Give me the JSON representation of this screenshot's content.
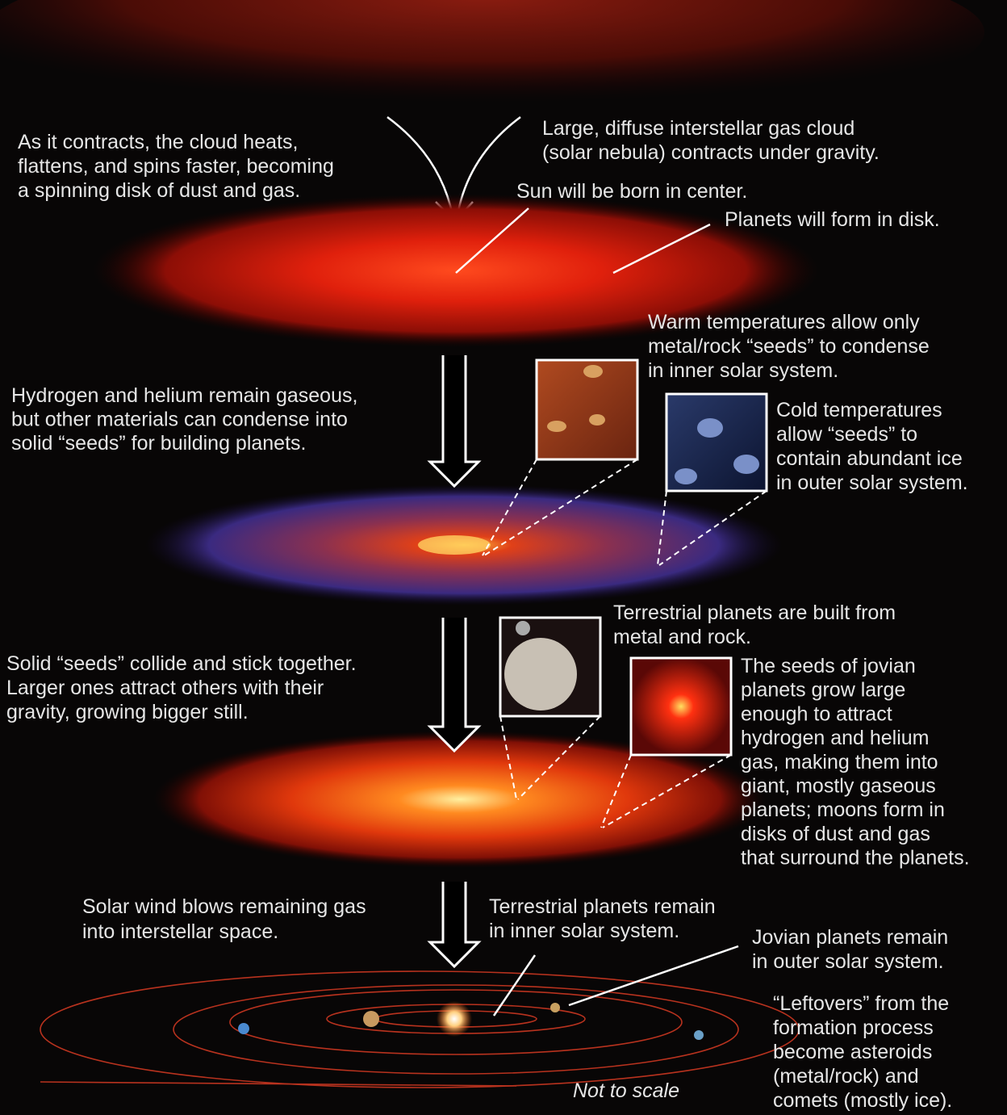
{
  "labels": [
    {
      "lines": [
        "As it contracts, the cloud heats,",
        "flattens, and spins faster, becoming",
        "a spinning disk of dust and gas."
      ]
    },
    {
      "lines": [
        "Large, diffuse interstellar gas cloud",
        "(solar nebula) contracts under gravity."
      ]
    },
    {
      "lines": [
        "Sun will be born in center."
      ]
    },
    {
      "lines": [
        "Planets will form in disk."
      ]
    },
    {
      "lines": [
        "Warm temperatures allow only",
        "metal/rock “seeds” to condense",
        "in inner solar system."
      ]
    },
    {
      "lines": [
        "Hydrogen and helium remain gaseous,",
        "but other materials can condense into",
        "solid “seeds” for building planets."
      ]
    },
    {
      "lines": [
        "Cold temperatures",
        "allow “seeds” to",
        "contain abundant ice",
        "in outer solar system."
      ]
    },
    {
      "lines": [
        "Terrestrial planets are built from",
        "metal and rock."
      ]
    },
    {
      "lines": [
        "Solid “seeds” collide and stick together.",
        "Larger ones attract others with their",
        "gravity, growing bigger still."
      ]
    },
    {
      "lines": [
        "The seeds of jovian",
        "planets grow large",
        "enough to attract",
        "hydrogen and helium",
        "gas, making them into",
        "giant, mostly gaseous",
        "planets; moons form in",
        "disks of dust and gas",
        "that surround the planets."
      ]
    },
    {
      "lines": [
        "Solar wind blows remaining gas",
        "into interstellar space."
      ]
    },
    {
      "lines": [
        "Terrestrial planets remain",
        "in inner solar system."
      ]
    },
    {
      "lines": [
        "Jovian planets remain",
        "in outer solar system."
      ]
    },
    {
      "lines": [
        "“Leftovers” from the",
        "formation process",
        "become asteroids",
        "(metal/rock) and",
        "comets (mostly ice)."
      ]
    },
    {
      "lines": [
        "Not to scale"
      ]
    }
  ]
}
